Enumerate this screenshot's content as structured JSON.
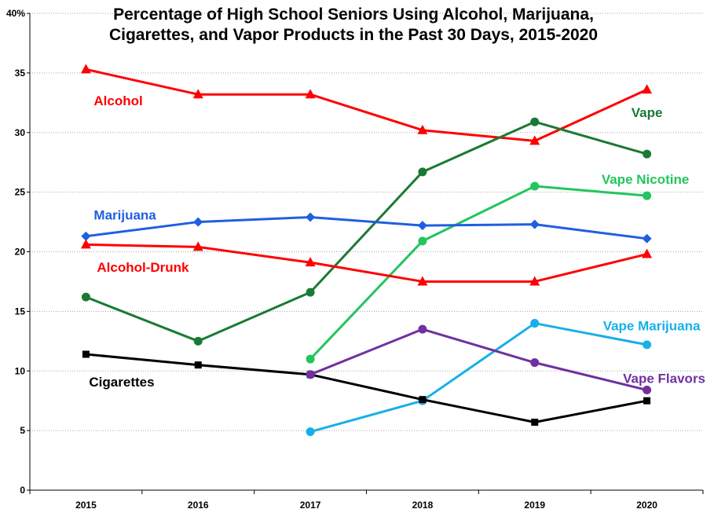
{
  "chart_data": {
    "type": "line",
    "title_lines": [
      "Percentage of High School Seniors Using Alcohol, Marijuana,",
      "Cigarettes, and Vapor Products in the Past 30 Days, 2015-2020"
    ],
    "categories": [
      "2015",
      "2016",
      "2017",
      "2018",
      "2019",
      "2020"
    ],
    "ylim": [
      0,
      40
    ],
    "yticks": [
      "0",
      "5",
      "10",
      "15",
      "20",
      "25",
      "30",
      "35",
      "40%"
    ],
    "grid": true,
    "series": [
      {
        "name": "Alcohol",
        "color": "#ff0000",
        "marker": "triangle",
        "values": [
          35.3,
          33.2,
          33.2,
          30.2,
          29.3,
          33.6
        ]
      },
      {
        "name": "Vape",
        "color": "#1a7a35",
        "marker": "circle",
        "values": [
          16.2,
          12.5,
          16.6,
          26.7,
          30.9,
          28.2
        ]
      },
      {
        "name": "Vape Nicotine",
        "color": "#22c55e",
        "marker": "circle",
        "values": [
          null,
          null,
          11.0,
          20.9,
          25.5,
          24.7
        ]
      },
      {
        "name": "Marijuana",
        "color": "#1f5fe0",
        "marker": "diamond",
        "values": [
          21.3,
          22.5,
          22.9,
          22.2,
          22.3,
          21.1
        ]
      },
      {
        "name": "Alcohol-Drunk",
        "color": "#ff0000",
        "marker": "triangle",
        "values": [
          20.6,
          20.4,
          19.1,
          17.5,
          17.5,
          19.8
        ]
      },
      {
        "name": "Vape Marijuana",
        "color": "#16b0e8",
        "marker": "circle",
        "values": [
          null,
          null,
          4.9,
          7.5,
          14.0,
          12.2
        ]
      },
      {
        "name": "Cigarettes",
        "color": "#000000",
        "marker": "square",
        "values": [
          11.4,
          10.5,
          9.7,
          7.6,
          5.7,
          7.5
        ]
      },
      {
        "name": "Vape Flavors",
        "color": "#7030a0",
        "marker": "circle",
        "values": [
          null,
          null,
          9.7,
          13.5,
          10.7,
          8.4
        ]
      }
    ]
  }
}
